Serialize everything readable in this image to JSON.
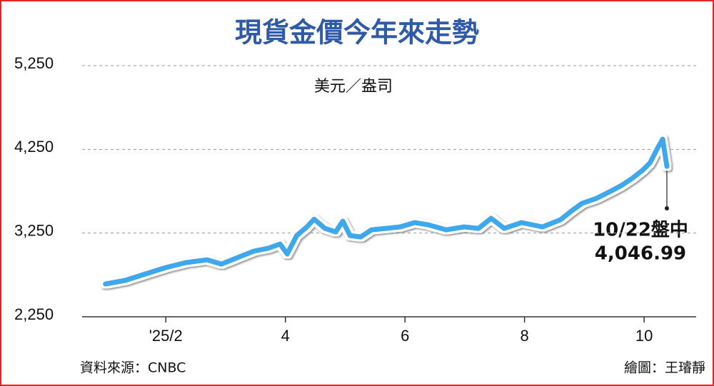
{
  "chart_data": {
    "type": "line",
    "title": "現貨金價今年來走勢",
    "y_label": "美元／盎司",
    "source": "資料來源：CNBC",
    "credit": "繪圖：王璿靜",
    "end_annotation": {
      "date": "10/22盤中",
      "value": "4,046.99"
    },
    "xlim": [
      0.6,
      10.87
    ],
    "xticks": [
      {
        "value": 2,
        "label": "'25/2"
      },
      4,
      6,
      8,
      10
    ],
    "ylim": [
      2250,
      5250
    ],
    "yticks": [
      {
        "value": 2250,
        "label": "2,250"
      },
      {
        "value": 3250,
        "label": "3,250"
      },
      {
        "value": 4250,
        "label": "4,250"
      },
      {
        "value": 5250,
        "label": "5,250"
      }
    ],
    "grid": true,
    "color": "#3ea8ec",
    "x": [
      0.99,
      1.32,
      1.62,
      2.0,
      2.33,
      2.69,
      2.93,
      3.17,
      3.47,
      3.71,
      3.91,
      4.03,
      4.19,
      4.36,
      4.48,
      4.66,
      4.84,
      4.96,
      5.08,
      5.26,
      5.44,
      5.68,
      5.92,
      6.16,
      6.39,
      6.69,
      6.99,
      7.23,
      7.44,
      7.66,
      7.95,
      8.3,
      8.6,
      8.78,
      8.96,
      9.2,
      9.44,
      9.62,
      9.8,
      9.98,
      10.1,
      10.22,
      10.31,
      10.38
    ],
    "values": [
      2642,
      2685,
      2753,
      2838,
      2897,
      2931,
      2880,
      2949,
      3034,
      3068,
      3119,
      3000,
      3221,
      3324,
      3417,
      3306,
      3264,
      3392,
      3221,
      3204,
      3289,
      3306,
      3324,
      3375,
      3349,
      3289,
      3324,
      3306,
      3426,
      3306,
      3375,
      3324,
      3409,
      3511,
      3605,
      3664,
      3750,
      3818,
      3903,
      4005,
      4090,
      4260,
      4372,
      4046.99
    ]
  }
}
